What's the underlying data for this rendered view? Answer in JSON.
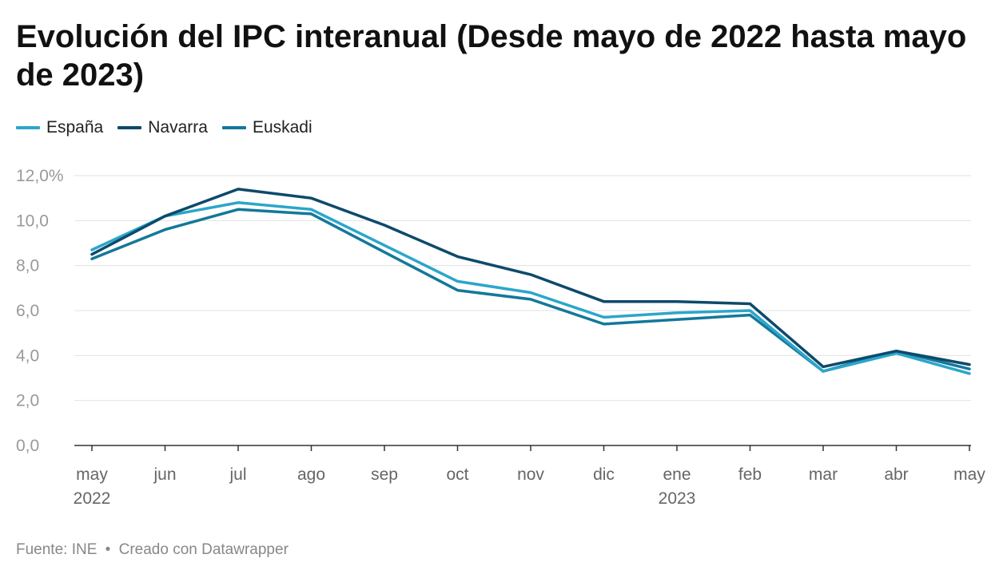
{
  "chart_data": {
    "type": "line",
    "title": "Evolución del IPC interanual (Desde mayo de 2022 hasta mayo de 2023)",
    "categories": [
      "may",
      "jun",
      "jul",
      "ago",
      "sep",
      "oct",
      "nov",
      "dic",
      "ene",
      "feb",
      "mar",
      "abr",
      "may"
    ],
    "category_sublabels": [
      "2022",
      "",
      "",
      "",
      "",
      "",
      "",
      "",
      "2023",
      "",
      "",
      "",
      ""
    ],
    "y_ticks": [
      "12,0%",
      "10,0",
      "8,0",
      "6,0",
      "4,0",
      "2,0",
      "0,0"
    ],
    "y_tick_values": [
      12,
      10,
      8,
      6,
      4,
      2,
      0
    ],
    "ylim": [
      0,
      12
    ],
    "xlabel": "",
    "ylabel": "",
    "grid": true,
    "legend_position": "top-left",
    "series": [
      {
        "name": "España",
        "color": "#2ba6cb",
        "values": [
          8.7,
          10.2,
          10.8,
          10.5,
          8.9,
          7.3,
          6.8,
          5.7,
          5.9,
          6.0,
          3.3,
          4.1,
          3.2
        ]
      },
      {
        "name": "Navarra",
        "color": "#0d4a6b",
        "values": [
          8.5,
          10.2,
          11.4,
          11.0,
          9.8,
          8.4,
          7.6,
          6.4,
          6.4,
          6.3,
          3.5,
          4.2,
          3.6
        ]
      },
      {
        "name": "Euskadi",
        "color": "#13789a",
        "values": [
          8.3,
          9.6,
          10.5,
          10.3,
          8.6,
          6.9,
          6.5,
          5.4,
          5.6,
          5.8,
          3.3,
          4.2,
          3.4
        ]
      }
    ]
  },
  "footer": {
    "source": "Fuente: INE",
    "separator": "•",
    "credit": "Creado con Datawrapper"
  }
}
